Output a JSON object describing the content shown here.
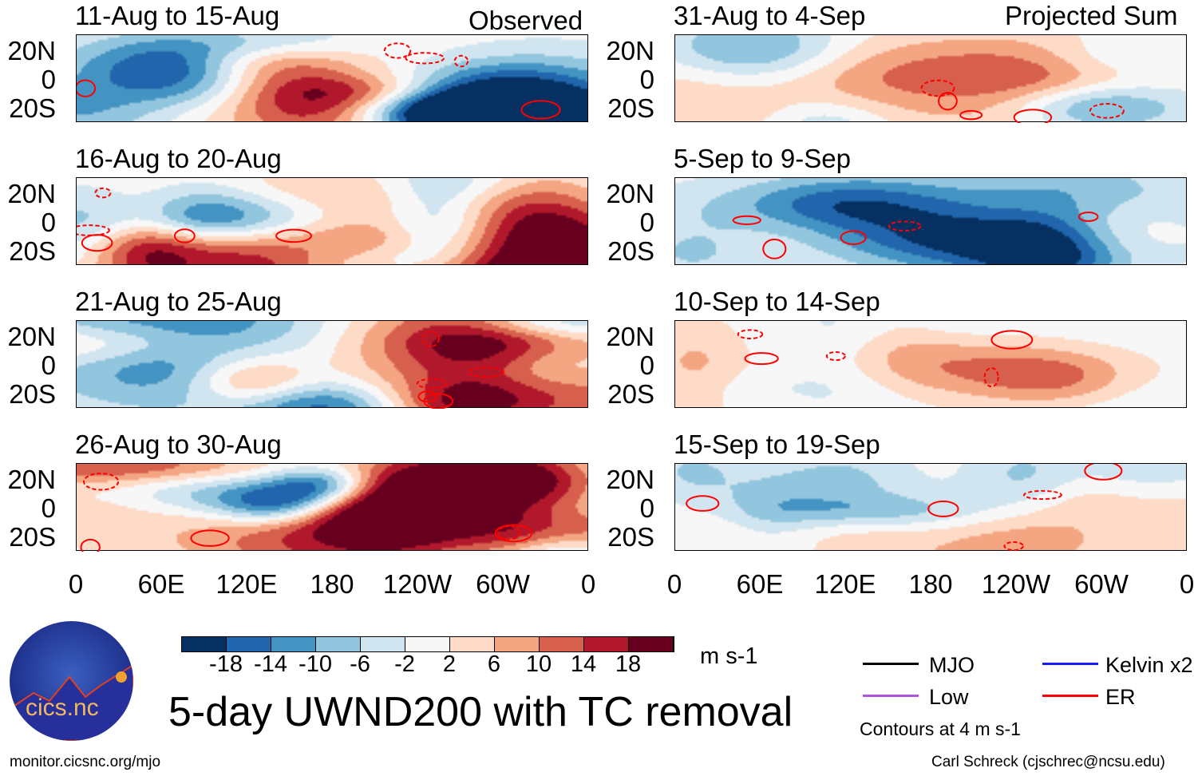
{
  "chart_data": {
    "type": "heatmap",
    "title": "5-day UWND200 with TC removal",
    "units": "m s-1",
    "columns": [
      {
        "label": "Observed",
        "panels": [
          "11-Aug to 15-Aug",
          "16-Aug to 20-Aug",
          "21-Aug to 25-Aug",
          "26-Aug to 30-Aug"
        ]
      },
      {
        "label": "Projected Sum",
        "panels": [
          "31-Aug to 4-Sep",
          "5-Sep to 9-Sep",
          "10-Sep to 14-Sep",
          "15-Sep to 19-Sep"
        ]
      }
    ],
    "lat_ticks": [
      "20N",
      "0",
      "20S"
    ],
    "lon_ticks": [
      "0",
      "60E",
      "120E",
      "180",
      "120W",
      "60W",
      "0"
    ],
    "colorbar": {
      "levels": [
        "-18",
        "-14",
        "-10",
        "-6",
        "-2",
        "2",
        "6",
        "10",
        "14",
        "18"
      ],
      "colors": [
        "#053061",
        "#2166ac",
        "#4393c3",
        "#92c5de",
        "#d1e5f0",
        "#f7f7f7",
        "#fddbc7",
        "#f4a582",
        "#d6604d",
        "#b2182b",
        "#67001f"
      ]
    },
    "legend": [
      {
        "label": "MJO",
        "color": "#000000"
      },
      {
        "label": "Kelvin x2",
        "color": "#1a1aff"
      },
      {
        "label": "Low",
        "color": "#b050e0"
      },
      {
        "label": "ER",
        "color": "#ff0000"
      }
    ],
    "contour_note": "Contours at 4 m s-1"
  },
  "logo_text": "cics.nc",
  "footer": {
    "left": "monitor.cicsnc.org/mjo",
    "right": "Carl Schreck (cjschrec@ncsu.edu)"
  }
}
